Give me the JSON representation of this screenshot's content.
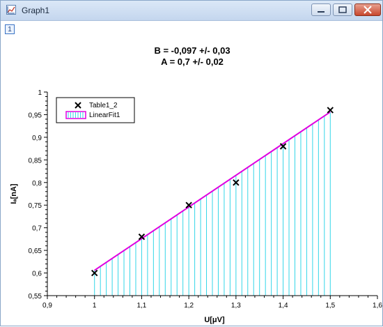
{
  "window": {
    "title": "Graph1",
    "layer_number": "1"
  },
  "annotations": {
    "b_line": "B = -0,097 +/- 0,03",
    "a_line": "A  = 0,7 +/- 0,02"
  },
  "colors": {
    "fit_line": "#e000e0",
    "fill": "#33d6e8",
    "points": "#000000",
    "axes": "#000000"
  },
  "chart_data": {
    "type": "scatter",
    "xlabel": "U[μV]",
    "ylabel": "Iₐ[nA]",
    "xlim": [
      0.9,
      1.6
    ],
    "ylim": [
      0.55,
      1.0
    ],
    "x_ticks": [
      "0,9",
      "1",
      "1,1",
      "1,2",
      "1,3",
      "1,4",
      "1,5",
      "1,6"
    ],
    "y_ticks": [
      "0,55",
      "0,6",
      "0,65",
      "0,7",
      "0,75",
      "0,8",
      "0,85",
      "0,9",
      "0,95",
      "1"
    ],
    "legend": {
      "position": "top-left",
      "entries": [
        "Table1_2",
        "LinearFit1"
      ]
    },
    "series": [
      {
        "name": "Table1_2",
        "kind": "scatter",
        "marker": "x",
        "x": [
          1.0,
          1.1,
          1.2,
          1.3,
          1.4,
          1.5
        ],
        "y": [
          0.6,
          0.68,
          0.75,
          0.8,
          0.88,
          0.96
        ]
      },
      {
        "name": "LinearFit1",
        "kind": "line-fill",
        "x": [
          1.0,
          1.5
        ],
        "y": [
          0.606,
          0.956
        ]
      }
    ]
  }
}
